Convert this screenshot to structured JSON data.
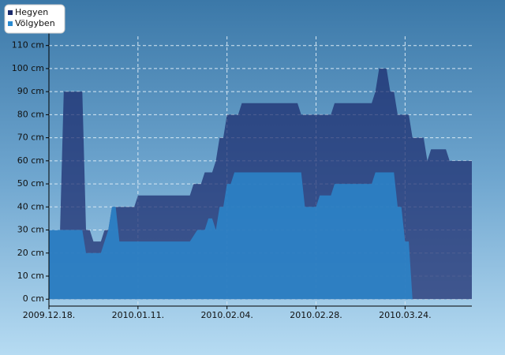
{
  "chart_data": {
    "type": "area",
    "series": [
      {
        "name": "Hegyen",
        "color": "#1a2a6c",
        "x": [
          "2009-12-18",
          "2009-12-21",
          "2009-12-22",
          "2009-12-27",
          "2009-12-28",
          "2009-12-29",
          "2009-12-30",
          "2010-01-01",
          "2010-01-02",
          "2010-01-03",
          "2010-01-04",
          "2010-01-10",
          "2010-01-11",
          "2010-01-25",
          "2010-01-26",
          "2010-01-28",
          "2010-01-29",
          "2010-01-31",
          "2010-02-01",
          "2010-02-02",
          "2010-02-03",
          "2010-02-04",
          "2010-02-07",
          "2010-02-08",
          "2010-02-23",
          "2010-02-24",
          "2010-03-04",
          "2010-03-05",
          "2010-03-15",
          "2010-03-16",
          "2010-03-17",
          "2010-03-19",
          "2010-03-20",
          "2010-03-21",
          "2010-03-22",
          "2010-03-25",
          "2010-03-26",
          "2010-03-29",
          "2010-03-30",
          "2010-03-31",
          "2010-04-04",
          "2010-04-05",
          "2010-04-11"
        ],
        "values": [
          30,
          30,
          90,
          90,
          30,
          30,
          25,
          25,
          30,
          30,
          40,
          40,
          45,
          45,
          50,
          50,
          55,
          55,
          60,
          70,
          70,
          80,
          80,
          85,
          85,
          80,
          80,
          85,
          85,
          90,
          100,
          100,
          90,
          90,
          80,
          80,
          70,
          70,
          60,
          65,
          65,
          60,
          60
        ]
      },
      {
        "name": "Völgyben",
        "color": "#2a8ad0",
        "x": [
          "2009-12-18",
          "2009-12-27",
          "2009-12-28",
          "2010-01-01",
          "2010-01-02",
          "2010-01-03",
          "2010-01-04",
          "2010-01-05",
          "2010-01-06",
          "2010-01-25",
          "2010-01-27",
          "2010-01-29",
          "2010-01-30",
          "2010-01-31",
          "2010-02-01",
          "2010-02-02",
          "2010-02-03",
          "2010-02-04",
          "2010-02-05",
          "2010-02-06",
          "2010-02-24",
          "2010-02-25",
          "2010-02-28",
          "2010-03-01",
          "2010-03-04",
          "2010-03-05",
          "2010-03-15",
          "2010-03-16",
          "2010-03-21",
          "2010-03-22",
          "2010-03-23",
          "2010-03-24",
          "2010-03-25",
          "2010-03-26",
          "2010-04-11"
        ],
        "values": [
          30,
          30,
          20,
          20,
          25,
          30,
          40,
          40,
          25,
          25,
          30,
          30,
          35,
          35,
          30,
          40,
          40,
          50,
          50,
          55,
          55,
          40,
          40,
          45,
          45,
          50,
          50,
          55,
          55,
          40,
          40,
          25,
          25,
          0,
          0
        ]
      }
    ],
    "xlim": [
      "2009-12-18",
      "2010-04-11"
    ],
    "xticks": [
      {
        "value": "2009-12-18",
        "label": "2009.12.18."
      },
      {
        "value": "2010-01-11",
        "label": "2010.01.11."
      },
      {
        "value": "2010-02-04",
        "label": "2010.02.04."
      },
      {
        "value": "2010-02-28",
        "label": "2010.02.28."
      },
      {
        "value": "2010-03-24",
        "label": "2010.03.24."
      }
    ],
    "ylim": [
      -3,
      114
    ],
    "yticks": [
      {
        "value": 0,
        "label": "0 cm"
      },
      {
        "value": 10,
        "label": "10 cm"
      },
      {
        "value": 20,
        "label": "20 cm"
      },
      {
        "value": 30,
        "label": "30 cm"
      },
      {
        "value": 40,
        "label": "40 cm"
      },
      {
        "value": 50,
        "label": "50 cm"
      },
      {
        "value": 60,
        "label": "60 cm"
      },
      {
        "value": 70,
        "label": "70 cm"
      },
      {
        "value": 80,
        "label": "80 cm"
      },
      {
        "value": 90,
        "label": "90 cm"
      },
      {
        "value": 100,
        "label": "100 cm"
      },
      {
        "value": 110,
        "label": "110 cm"
      }
    ],
    "grid": true,
    "legend": "top-left"
  }
}
